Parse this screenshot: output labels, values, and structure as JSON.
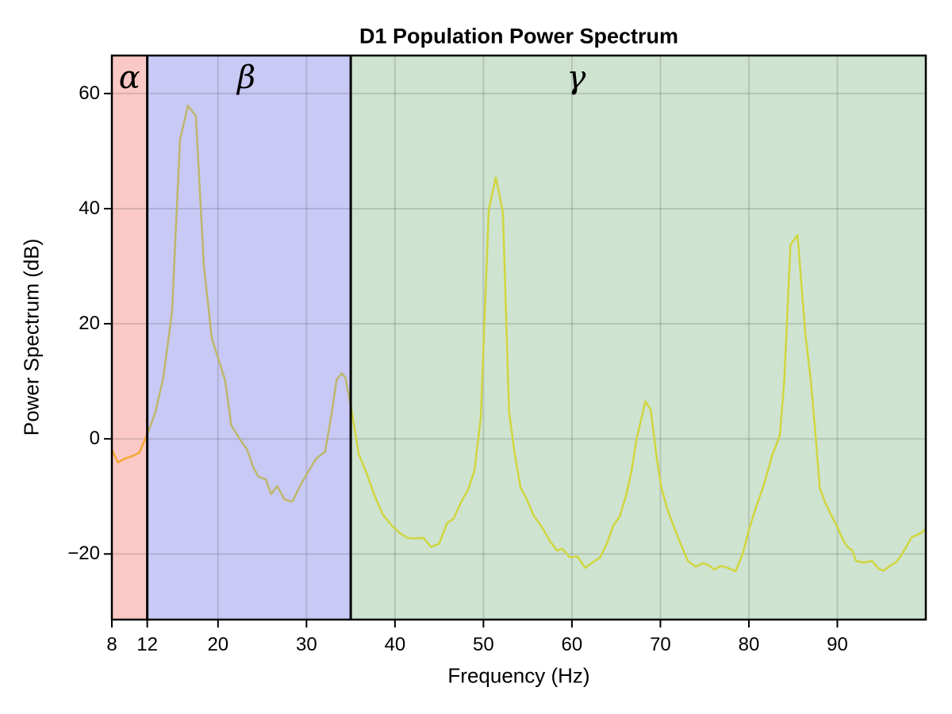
{
  "figure": {
    "background": "#ffffff"
  },
  "chart_data": {
    "type": "line",
    "title": "D1 Population Power Spectrum",
    "xlabel": "Frequency (Hz)",
    "ylabel": "Power Spectrum (dB)",
    "xlim": [
      8,
      100
    ],
    "ylim": [
      -31.4,
      66.6
    ],
    "grid": true,
    "grid_color": "rgba(0,0,0,0.13)",
    "axis_color": "#000000",
    "xticks": [
      {
        "value": 8,
        "label": "8"
      },
      {
        "value": 12,
        "label": "12"
      },
      {
        "value": 20,
        "label": "20"
      },
      {
        "value": 30,
        "label": "30"
      },
      {
        "value": 40,
        "label": "40"
      },
      {
        "value": 50,
        "label": "50"
      },
      {
        "value": 60,
        "label": "60"
      },
      {
        "value": 70,
        "label": "70"
      },
      {
        "value": 80,
        "label": "80"
      },
      {
        "value": 90,
        "label": "90"
      }
    ],
    "yticks": [
      {
        "value": -20,
        "label": "−20"
      },
      {
        "value": 0,
        "label": "0"
      },
      {
        "value": 20,
        "label": "20"
      },
      {
        "value": 40,
        "label": "40"
      },
      {
        "value": 60,
        "label": "60"
      }
    ],
    "band_boundaries_hz": [
      12,
      35
    ],
    "bands": [
      {
        "name": "alpha",
        "label": "α",
        "range_hz": [
          8,
          12
        ],
        "fill": "#fac9c5",
        "line_color": "#f5a832",
        "label_x_hz": 10.0
      },
      {
        "name": "beta",
        "label": "β",
        "range_hz": [
          12,
          35
        ],
        "fill": "#c9c9f6",
        "line_color": "#bdb76b",
        "label_x_hz": 23.2
      },
      {
        "name": "gamma",
        "label": "γ",
        "range_hz": [
          35,
          100
        ],
        "fill": "#cee3d0",
        "line_color": "#d0d63e",
        "label_x_hz": 60.5
      }
    ],
    "series": [
      {
        "name": "D1 population power spectrum",
        "points": [
          [
            8.0,
            -1.9
          ],
          [
            8.7,
            -4.1
          ],
          [
            9.5,
            -3.4
          ],
          [
            10.3,
            -3.0
          ],
          [
            11.1,
            -2.4
          ],
          [
            12.0,
            0.8
          ],
          [
            12.9,
            4.5
          ],
          [
            13.8,
            10.5
          ],
          [
            14.8,
            22.0
          ],
          [
            15.7,
            52.0
          ],
          [
            16.6,
            57.9
          ],
          [
            17.5,
            56.1
          ],
          [
            18.4,
            30.0
          ],
          [
            19.3,
            17.5
          ],
          [
            20.8,
            10.2
          ],
          [
            21.5,
            2.3
          ],
          [
            22.4,
            0.1
          ],
          [
            23.3,
            -1.9
          ],
          [
            24.0,
            -5.0
          ],
          [
            24.6,
            -6.6
          ],
          [
            25.4,
            -7.0
          ],
          [
            26.0,
            -9.6
          ],
          [
            26.7,
            -8.2
          ],
          [
            27.5,
            -10.5
          ],
          [
            28.4,
            -10.9
          ],
          [
            29.3,
            -8.1
          ],
          [
            30.2,
            -5.7
          ],
          [
            31.1,
            -3.4
          ],
          [
            32.1,
            -2.2
          ],
          [
            32.8,
            4.0
          ],
          [
            33.4,
            10.3
          ],
          [
            34.0,
            11.4
          ],
          [
            34.4,
            10.6
          ],
          [
            35.0,
            5.8
          ],
          [
            35.9,
            -2.6
          ],
          [
            36.8,
            -6.0
          ],
          [
            37.7,
            -9.9
          ],
          [
            38.6,
            -13.1
          ],
          [
            39.6,
            -15.0
          ],
          [
            40.5,
            -16.3
          ],
          [
            41.4,
            -17.2
          ],
          [
            42.3,
            -17.3
          ],
          [
            43.2,
            -17.2
          ],
          [
            44.1,
            -18.8
          ],
          [
            45.0,
            -18.2
          ],
          [
            45.9,
            -14.6
          ],
          [
            46.6,
            -13.9
          ],
          [
            47.5,
            -10.9
          ],
          [
            48.3,
            -8.7
          ],
          [
            49.0,
            -5.4
          ],
          [
            49.7,
            3.7
          ],
          [
            50.6,
            39.9
          ],
          [
            51.4,
            45.4
          ],
          [
            52.2,
            39.4
          ],
          [
            52.9,
            4.7
          ],
          [
            53.5,
            -2.2
          ],
          [
            54.2,
            -8.5
          ],
          [
            54.8,
            -10.2
          ],
          [
            55.7,
            -13.4
          ],
          [
            56.6,
            -15.3
          ],
          [
            57.5,
            -17.7
          ],
          [
            58.3,
            -19.4
          ],
          [
            58.9,
            -19.1
          ],
          [
            59.8,
            -20.6
          ],
          [
            60.6,
            -20.4
          ],
          [
            61.5,
            -22.4
          ],
          [
            62.4,
            -21.4
          ],
          [
            63.2,
            -20.6
          ],
          [
            64.0,
            -18.0
          ],
          [
            64.7,
            -15.0
          ],
          [
            65.4,
            -13.5
          ],
          [
            66.1,
            -10.0
          ],
          [
            66.7,
            -5.9
          ],
          [
            67.3,
            -0.1
          ],
          [
            68.3,
            6.5
          ],
          [
            68.9,
            5.1
          ],
          [
            69.6,
            -3.5
          ],
          [
            70.1,
            -8.4
          ],
          [
            70.8,
            -12.3
          ],
          [
            71.6,
            -15.6
          ],
          [
            72.3,
            -18.3
          ],
          [
            73.1,
            -21.2
          ],
          [
            74.0,
            -22.2
          ],
          [
            74.8,
            -21.6
          ],
          [
            75.4,
            -21.9
          ],
          [
            76.1,
            -22.7
          ],
          [
            76.8,
            -22.1
          ],
          [
            77.6,
            -22.4
          ],
          [
            78.5,
            -23.0
          ],
          [
            79.3,
            -20.0
          ],
          [
            80.1,
            -15.3
          ],
          [
            80.8,
            -11.9
          ],
          [
            81.7,
            -8.0
          ],
          [
            82.6,
            -3.0
          ],
          [
            83.5,
            0.6
          ],
          [
            84.0,
            10.2
          ],
          [
            84.7,
            33.7
          ],
          [
            85.5,
            35.4
          ],
          [
            86.4,
            18.0
          ],
          [
            87.0,
            10.2
          ],
          [
            87.6,
            -0.5
          ],
          [
            88.0,
            -8.5
          ],
          [
            88.6,
            -11.0
          ],
          [
            89.1,
            -12.6
          ],
          [
            90.0,
            -15.3
          ],
          [
            90.5,
            -17.1
          ],
          [
            91.1,
            -18.7
          ],
          [
            91.7,
            -19.4
          ],
          [
            92.1,
            -21.2
          ],
          [
            93.0,
            -21.5
          ],
          [
            93.9,
            -21.2
          ],
          [
            94.7,
            -22.6
          ],
          [
            95.2,
            -22.9
          ],
          [
            96.1,
            -21.9
          ],
          [
            96.6,
            -21.5
          ],
          [
            97.1,
            -20.5
          ],
          [
            97.7,
            -19.0
          ],
          [
            98.4,
            -17.1
          ],
          [
            99.0,
            -16.7
          ],
          [
            99.5,
            -16.3
          ],
          [
            100.0,
            -15.6
          ]
        ]
      }
    ]
  }
}
